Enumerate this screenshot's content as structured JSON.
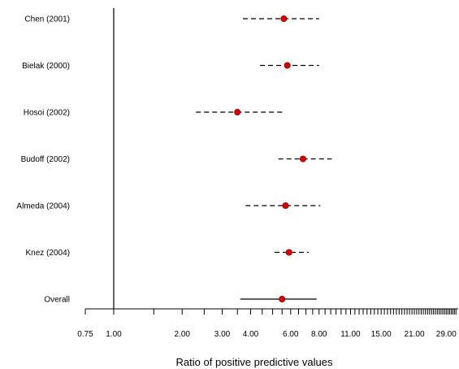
{
  "chart_data": {
    "type": "forest",
    "xlabel": "Ratio of positive predictive values",
    "x_scale": "log",
    "xlim": [
      0.75,
      33.0
    ],
    "reference_line": 1.0,
    "tick_labels": [
      "0.75",
      "1.00",
      "2.00",
      "3.00",
      "4.00",
      "6.00",
      "8.00",
      "11.00",
      "15.00",
      "21.00",
      "29.00"
    ],
    "tick_values": [
      0.75,
      1.0,
      2.0,
      3.0,
      4.0,
      6.0,
      8.0,
      11.0,
      15.0,
      21.0,
      29.0
    ],
    "minor_tick_values": [
      1.5,
      2.5,
      3.5,
      4.5,
      5,
      5.5,
      6.5,
      7,
      7.5,
      8.5,
      9,
      9.5,
      10,
      10.5,
      11.5,
      12,
      12.5,
      13,
      13.5,
      14,
      14.5,
      15.5,
      16,
      16.5,
      17,
      17.5,
      18,
      18.5,
      19,
      19.5,
      20,
      20.5,
      21.5,
      22,
      22.5,
      23,
      23.5,
      24,
      24.5,
      25,
      25.5,
      26,
      26.5,
      27,
      27.5,
      28,
      28.5,
      29.5,
      30,
      30.5,
      31,
      31.5,
      32
    ],
    "colors": {
      "point": "#dd0000",
      "line": "#000000"
    },
    "studies": [
      {
        "label": "Chen (2001)",
        "estimate": 5.6,
        "lower": 3.7,
        "upper": 8.0,
        "style": "dashed"
      },
      {
        "label": "Bielak (2000)",
        "estimate": 5.8,
        "lower": 4.4,
        "upper": 8.0,
        "style": "dashed"
      },
      {
        "label": "Hosoi (2002)",
        "estimate": 3.5,
        "lower": 2.3,
        "upper": 5.5,
        "style": "dashed"
      },
      {
        "label": "Budoff (2002)",
        "estimate": 6.8,
        "lower": 5.3,
        "upper": 9.1,
        "style": "dashed"
      },
      {
        "label": "Almeda (2004)",
        "estimate": 5.7,
        "lower": 3.8,
        "upper": 8.1,
        "style": "dashed"
      },
      {
        "label": "Knez (2004)",
        "estimate": 5.9,
        "lower": 5.1,
        "upper": 7.2,
        "style": "dashed"
      },
      {
        "label": "Overall",
        "estimate": 5.5,
        "lower": 3.6,
        "upper": 7.8,
        "style": "solid"
      }
    ]
  }
}
